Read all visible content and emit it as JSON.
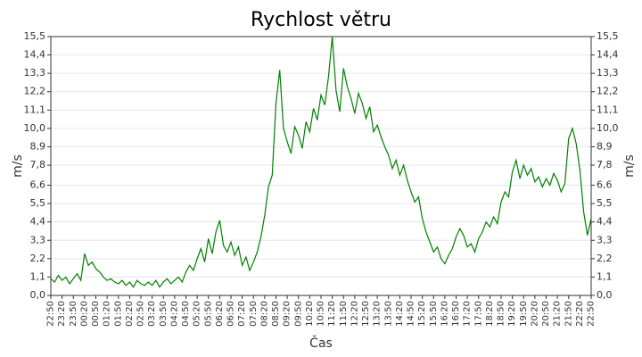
{
  "chart_data": {
    "type": "line",
    "title": "Rychlost větru",
    "xlabel": "Čas",
    "ylabel": "m/s",
    "color": "#008000",
    "grid": true,
    "ylim": [
      0,
      15.5
    ],
    "yticks": [
      {
        "value": 0,
        "label": "0,0"
      },
      {
        "value": 1.1,
        "label": "1,1"
      },
      {
        "value": 2.2,
        "label": "2,2"
      },
      {
        "value": 3.3,
        "label": "3,3"
      },
      {
        "value": 4.4,
        "label": "4,4"
      },
      {
        "value": 5.5,
        "label": "5,5"
      },
      {
        "value": 6.6,
        "label": "6,6"
      },
      {
        "value": 7.8,
        "label": "7,8"
      },
      {
        "value": 8.9,
        "label": "8,9"
      },
      {
        "value": 10.0,
        "label": "10,0"
      },
      {
        "value": 11.1,
        "label": "11,1"
      },
      {
        "value": 12.2,
        "label": "12,2"
      },
      {
        "value": 13.3,
        "label": "13,3"
      },
      {
        "value": 14.4,
        "label": "14,4"
      },
      {
        "value": 15.5,
        "label": "15,5"
      }
    ],
    "xticks": [
      "22:50",
      "23:20",
      "23:50",
      "00:20",
      "00:50",
      "01:20",
      "01:50",
      "02:20",
      "02:50",
      "03:20",
      "03:50",
      "04:20",
      "04:50",
      "05:20",
      "05:50",
      "06:20",
      "06:50",
      "07:20",
      "07:50",
      "08:20",
      "08:50",
      "09:20",
      "09:50",
      "10:20",
      "10:50",
      "11:20",
      "11:50",
      "12:20",
      "12:50",
      "13:20",
      "13:50",
      "14:20",
      "14:50",
      "15:20",
      "15:50",
      "16:20",
      "16:50",
      "17:20",
      "17:50",
      "18:20",
      "18:50",
      "19:20",
      "19:50",
      "20:20",
      "20:50",
      "21:20",
      "21:50",
      "22:20",
      "22:50"
    ],
    "x": [
      "22:50",
      "23:00",
      "23:10",
      "23:20",
      "23:30",
      "23:40",
      "23:50",
      "00:00",
      "00:10",
      "00:20",
      "00:30",
      "00:40",
      "00:50",
      "01:00",
      "01:10",
      "01:20",
      "01:30",
      "01:40",
      "01:50",
      "02:00",
      "02:10",
      "02:20",
      "02:30",
      "02:40",
      "02:50",
      "03:00",
      "03:10",
      "03:20",
      "03:30",
      "03:40",
      "03:50",
      "04:00",
      "04:10",
      "04:20",
      "04:30",
      "04:40",
      "04:50",
      "05:00",
      "05:10",
      "05:20",
      "05:30",
      "05:40",
      "05:50",
      "06:00",
      "06:10",
      "06:20",
      "06:30",
      "06:40",
      "06:50",
      "07:00",
      "07:10",
      "07:20",
      "07:30",
      "07:40",
      "07:50",
      "08:00",
      "08:10",
      "08:20",
      "08:30",
      "08:40",
      "08:50",
      "09:00",
      "09:10",
      "09:20",
      "09:30",
      "09:40",
      "09:50",
      "10:00",
      "10:10",
      "10:20",
      "10:30",
      "10:40",
      "10:50",
      "11:00",
      "11:10",
      "11:20",
      "11:30",
      "11:40",
      "11:50",
      "12:00",
      "12:10",
      "12:20",
      "12:30",
      "12:40",
      "12:50",
      "13:00",
      "13:10",
      "13:20",
      "13:30",
      "13:40",
      "13:50",
      "14:00",
      "14:10",
      "14:20",
      "14:30",
      "14:40",
      "14:50",
      "15:00",
      "15:10",
      "15:20",
      "15:30",
      "15:40",
      "15:50",
      "16:00",
      "16:10",
      "16:20",
      "16:30",
      "16:40",
      "16:50",
      "17:00",
      "17:10",
      "17:20",
      "17:30",
      "17:40",
      "17:50",
      "18:00",
      "18:10",
      "18:20",
      "18:30",
      "18:40",
      "18:50",
      "19:00",
      "19:10",
      "19:20",
      "19:30",
      "19:40",
      "19:50",
      "20:00",
      "20:10",
      "20:20",
      "20:30",
      "20:40",
      "20:50",
      "21:00",
      "21:10",
      "21:20",
      "21:30",
      "21:40",
      "21:50",
      "22:00",
      "22:10",
      "22:20",
      "22:30",
      "22:40",
      "22:50"
    ],
    "values": [
      1.0,
      0.8,
      1.2,
      0.9,
      1.1,
      0.7,
      1.0,
      1.3,
      0.9,
      2.5,
      1.8,
      2.0,
      1.6,
      1.4,
      1.1,
      0.9,
      1.0,
      0.8,
      0.7,
      0.9,
      0.6,
      0.8,
      0.5,
      0.9,
      0.7,
      0.6,
      0.8,
      0.6,
      0.9,
      0.5,
      0.8,
      1.0,
      0.7,
      0.9,
      1.1,
      0.8,
      1.4,
      1.8,
      1.5,
      2.2,
      2.8,
      2.0,
      3.4,
      2.5,
      3.8,
      4.5,
      3.0,
      2.6,
      3.2,
      2.4,
      2.9,
      1.8,
      2.3,
      1.5,
      2.0,
      2.6,
      3.5,
      4.8,
      6.5,
      7.2,
      11.5,
      13.5,
      10.0,
      9.2,
      8.5,
      10.1,
      9.6,
      8.8,
      10.4,
      9.8,
      11.2,
      10.5,
      12.0,
      11.4,
      13.1,
      15.5,
      12.3,
      11.0,
      13.6,
      12.5,
      11.8,
      10.9,
      12.1,
      11.5,
      10.6,
      11.3,
      9.8,
      10.2,
      9.5,
      8.9,
      8.4,
      7.6,
      8.1,
      7.2,
      7.8,
      6.9,
      6.2,
      5.6,
      5.9,
      4.6,
      3.8,
      3.2,
      2.6,
      2.9,
      2.2,
      1.9,
      2.4,
      2.8,
      3.5,
      4.0,
      3.6,
      2.9,
      3.1,
      2.6,
      3.4,
      3.8,
      4.4,
      4.1,
      4.7,
      4.3,
      5.6,
      6.2,
      5.9,
      7.4,
      8.1,
      7.0,
      7.8,
      7.2,
      7.6,
      6.8,
      7.1,
      6.5,
      7.0,
      6.6,
      7.3,
      6.9,
      6.2,
      6.7,
      9.4,
      10.0,
      9.1,
      7.5,
      5.0,
      3.6,
      4.6
    ]
  }
}
